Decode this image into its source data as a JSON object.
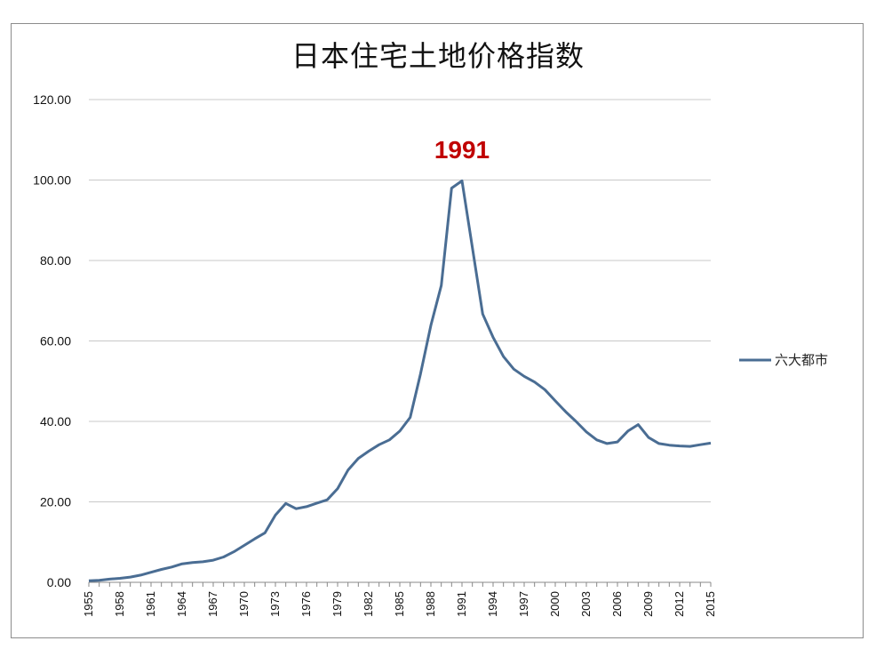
{
  "chart_data": {
    "type": "line",
    "title": "日本住宅土地价格指数",
    "xlabel": "",
    "ylabel": "",
    "ylim": [
      0,
      120
    ],
    "y_ticks": [
      "0.00",
      "20.00",
      "40.00",
      "60.00",
      "80.00",
      "100.00",
      "120.00"
    ],
    "x_tick_labels": [
      "1955",
      "1958",
      "1961",
      "1964",
      "1967",
      "1970",
      "1973",
      "1976",
      "1979",
      "1982",
      "1985",
      "1988",
      "1991",
      "1994",
      "1997",
      "2000",
      "2003",
      "2006",
      "2009",
      "2012",
      "2015"
    ],
    "x": [
      1955,
      1956,
      1957,
      1958,
      1959,
      1960,
      1961,
      1962,
      1963,
      1964,
      1965,
      1966,
      1967,
      1968,
      1969,
      1970,
      1971,
      1972,
      1973,
      1974,
      1975,
      1976,
      1977,
      1978,
      1979,
      1980,
      1981,
      1982,
      1983,
      1984,
      1985,
      1986,
      1987,
      1988,
      1989,
      1990,
      1991,
      1992,
      1993,
      1994,
      1995,
      1996,
      1997,
      1998,
      1999,
      2000,
      2001,
      2002,
      2003,
      2004,
      2005,
      2006,
      2007,
      2008,
      2009,
      2010,
      2011,
      2012,
      2013,
      2014,
      2015
    ],
    "series": [
      {
        "name": "六大都市",
        "color": "#4a6d93",
        "values": [
          0.4,
          0.5,
          0.8,
          1.0,
          1.3,
          1.8,
          2.5,
          3.2,
          3.8,
          4.6,
          4.9,
          5.1,
          5.5,
          6.3,
          7.6,
          9.2,
          10.8,
          12.3,
          16.7,
          19.6,
          18.3,
          18.8,
          19.7,
          20.5,
          23.3,
          27.9,
          30.8,
          32.6,
          34.2,
          35.4,
          37.6,
          41.0,
          51.8,
          63.9,
          73.8,
          98.0,
          99.8,
          83.2,
          66.7,
          60.9,
          56.1,
          53.0,
          51.2,
          49.8,
          47.9,
          45.1,
          42.4,
          40.0,
          37.4,
          35.4,
          34.5,
          34.9,
          37.6,
          39.2,
          36.0,
          34.5,
          34.1,
          33.9,
          33.8,
          34.2,
          34.6
        ]
      }
    ],
    "annotations": [
      {
        "text": "1991",
        "x": 1991,
        "color": "#c00000"
      }
    ],
    "legend_position": "right",
    "grid": true
  }
}
